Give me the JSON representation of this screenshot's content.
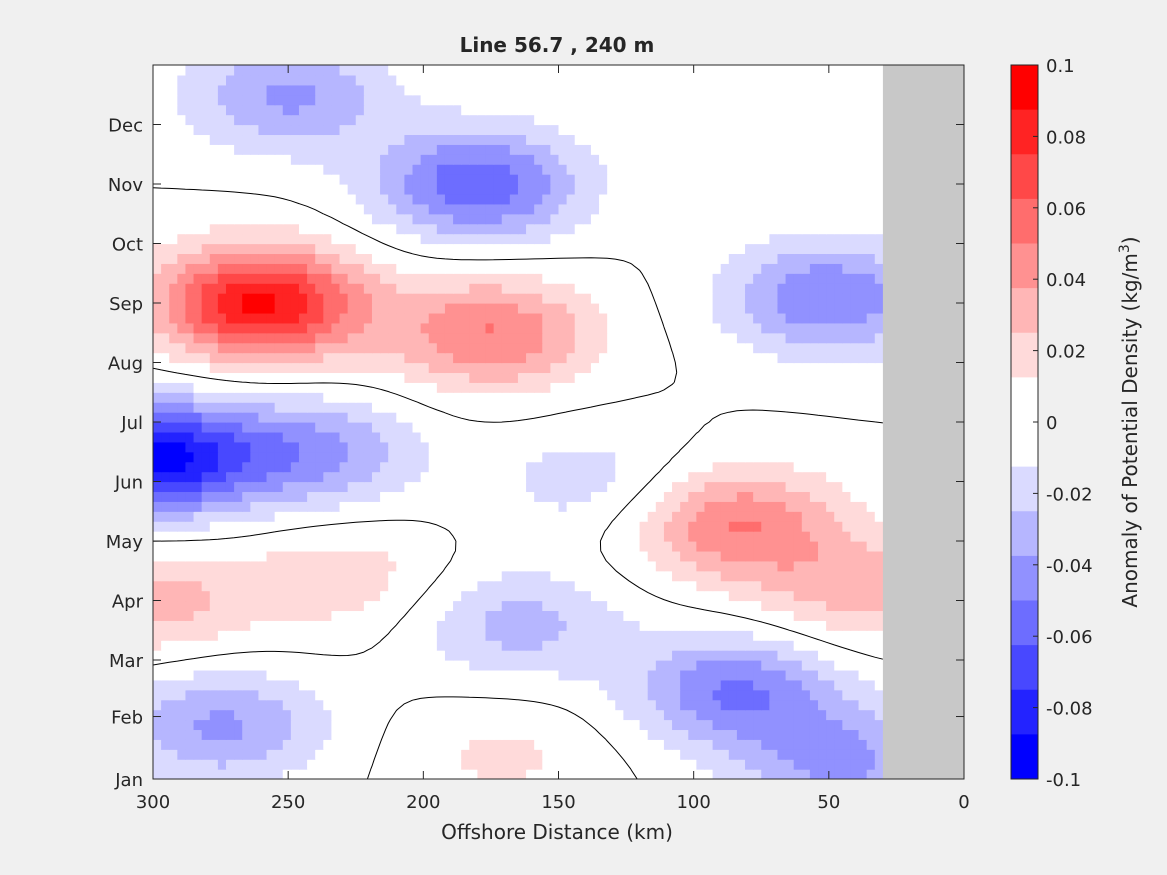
{
  "chart_data": {
    "type": "heatmap",
    "title": "Line 56.7 , 240 m",
    "xlabel": "Offshore Distance (km)",
    "ylabel": "",
    "xlim": [
      300,
      0
    ],
    "x_reversed": true,
    "ylim": [
      0,
      12
    ],
    "x_ticks": [
      300,
      250,
      200,
      150,
      100,
      50,
      0
    ],
    "y_ticks": [
      "Jan",
      "Feb",
      "Mar",
      "Apr",
      "May",
      "Jun",
      "Jul",
      "Aug",
      "Sep",
      "Oct",
      "Nov",
      "Dec"
    ],
    "y_tick_positions": [
      0,
      1.05,
      2,
      3,
      4,
      5,
      6,
      7,
      8,
      9,
      10,
      11
    ],
    "no_data_region": {
      "x_from": 30,
      "x_to": 0,
      "color": "#c8c8c8"
    },
    "zero_contour": true,
    "colorbar": {
      "label_main": "Anomaly of Potential Density (kg/m",
      "label_sup": "3",
      "label_close": ")",
      "min": -0.1,
      "max": 0.1,
      "ticks": [
        "0.1",
        "0.08",
        "0.06",
        "0.04",
        "0.02",
        "0",
        "-0.02",
        "-0.04",
        "-0.06",
        "-0.08",
        "-0.1"
      ],
      "levels": [
        "#ff0000",
        "#ff2323",
        "#ff4848",
        "#ff6d6d",
        "#ff9191",
        "#ffb6b6",
        "#ffdada",
        "#ffffff",
        "#ffffff",
        "#dadaff",
        "#b6b6ff",
        "#9191ff",
        "#6d6dff",
        "#4848ff",
        "#2323ff",
        "#0000ff"
      ]
    },
    "features": [
      {
        "name": "September high-density core",
        "x": 260,
        "y": 8.0,
        "value": 0.09
      },
      {
        "name": "August-September positive band",
        "x": 175,
        "y": 7.5,
        "value": 0.05
      },
      {
        "name": "May-June nearshore positive",
        "x": 85,
        "y": 4.3,
        "value": 0.05
      },
      {
        "name": "April nearshore positive",
        "x": 40,
        "y": 3.2,
        "value": 0.03
      },
      {
        "name": "April offshore positive",
        "x": 300,
        "y": 3.0,
        "value": 0.03
      },
      {
        "name": "April mid positive",
        "x": 230,
        "y": 3.4,
        "value": 0.02
      },
      {
        "name": "January positive",
        "x": 170,
        "y": 0.4,
        "value": 0.015
      },
      {
        "name": "November low-density core",
        "x": 180,
        "y": 10.0,
        "value": -0.06
      },
      {
        "name": "December northern negative",
        "x": 250,
        "y": 11.5,
        "value": -0.04
      },
      {
        "name": "September nearshore negative",
        "x": 50,
        "y": 8.1,
        "value": -0.05
      },
      {
        "name": "June offshore negative core",
        "x": 300,
        "y": 5.4,
        "value": -0.09
      },
      {
        "name": "June mid negative",
        "x": 240,
        "y": 5.5,
        "value": -0.04
      },
      {
        "name": "June isolated negative",
        "x": 137,
        "y": 5.0,
        "value": -0.02
      },
      {
        "name": "March negative",
        "x": 165,
        "y": 2.6,
        "value": -0.03
      },
      {
        "name": "February nearshore negative",
        "x": 85,
        "y": 1.5,
        "value": -0.05
      },
      {
        "name": "February offshore negative",
        "x": 275,
        "y": 0.9,
        "value": -0.04
      },
      {
        "name": "January nearshore negative",
        "x": 45,
        "y": 0.3,
        "value": -0.04
      }
    ]
  }
}
